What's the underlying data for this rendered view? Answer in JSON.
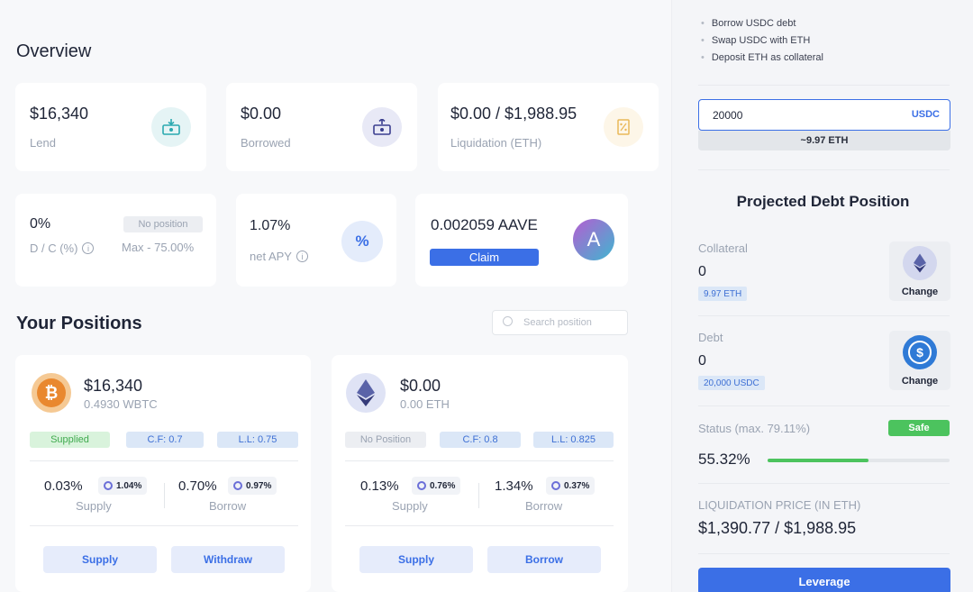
{
  "overview": {
    "title": "Overview",
    "lend": {
      "value": "$16,340",
      "label": "Lend",
      "icon": "deposit-money-icon"
    },
    "borrowed": {
      "value": "$0.00",
      "label": "Borrowed",
      "icon": "withdraw-money-icon"
    },
    "liquidation": {
      "value": "$0.00 / $1,988.95",
      "label": "Liquidation (ETH)",
      "icon": "percent-document-icon"
    },
    "dc": {
      "value": "0%",
      "label": "D / C (%)",
      "badge": "No position",
      "max": "Max - 75.00%"
    },
    "apy": {
      "value": "1.07%",
      "label": "net APY",
      "icon_text": "%"
    },
    "aave": {
      "value": "0.002059 AAVE",
      "claim": "Claim",
      "logo_text": "A"
    }
  },
  "positions": {
    "title": "Your Positions",
    "search_placeholder": "Search position",
    "cards": [
      {
        "amount": "$16,340",
        "sub": "0.4930 WBTC",
        "status": "Supplied",
        "cf": "C.F: 0.7",
        "ll": "L.L: 0.75",
        "supply_rate": "0.03%",
        "supply_reward": "1.04%",
        "supply_label": "Supply",
        "borrow_rate": "0.70%",
        "borrow_reward": "0.97%",
        "borrow_label": "Borrow",
        "btn1": "Supply",
        "btn2": "Withdraw",
        "coin_symbol": "₿"
      },
      {
        "amount": "$0.00",
        "sub": "0.00 ETH",
        "status": "No Position",
        "cf": "C.F: 0.8",
        "ll": "L.L: 0.825",
        "supply_rate": "0.13%",
        "supply_reward": "0.76%",
        "supply_label": "Supply",
        "borrow_rate": "1.34%",
        "borrow_reward": "0.37%",
        "borrow_label": "Borrow",
        "btn1": "Supply",
        "btn2": "Borrow"
      }
    ]
  },
  "sidebar": {
    "steps": [
      "Borrow USDC debt",
      "Swap USDC with ETH",
      "Deposit ETH as collateral"
    ],
    "input_value": "20000",
    "input_unit": "USDC",
    "conversion": "~9.97 ETH",
    "projected_title": "Projected Debt Position",
    "collateral": {
      "label": "Collateral",
      "value": "0",
      "tag": "9.97 ETH",
      "change": "Change"
    },
    "debt": {
      "label": "Debt",
      "value": "0",
      "tag": "20,000 USDC",
      "change": "Change",
      "coin_symbol": "$"
    },
    "status": {
      "label": "Status (max. 79.11%)",
      "badge": "Safe",
      "value": "55.32%",
      "progress": 0.5532
    },
    "liq_price": {
      "label": "LIQUIDATION PRICE (IN ETH)",
      "value": "$1,390.77 / $1,988.95"
    },
    "leverage_button": "Leverage"
  },
  "colors": {
    "accent": "#3b6fe6",
    "safe": "#4cc35e",
    "progress": "#4cc35e"
  }
}
